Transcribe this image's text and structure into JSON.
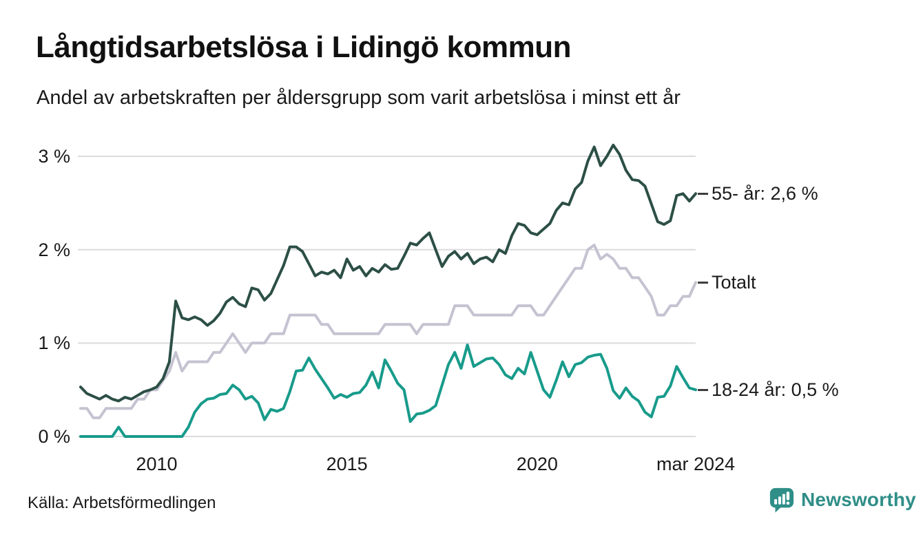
{
  "chart_data": {
    "type": "line",
    "title": "Långtidsarbetslösa i Lidingö kommun",
    "subtitle": "Andel av arbetskraften per åldersgrupp som varit arbetslösa i minst ett år",
    "source": "Källa: Arbetsförmedlingen",
    "x_unit": "year (monthly data, jan 2008 – mar 2024)",
    "xlim": [
      2008,
      2024.1667
    ],
    "ylim": [
      0,
      3.2
    ],
    "grid": "horizontal",
    "legend_position": "end-of-line labels on right",
    "xticks": [
      {
        "label": "2010",
        "year": 2010
      },
      {
        "label": "2015",
        "year": 2015
      },
      {
        "label": "2020",
        "year": 2020
      },
      {
        "label": "mar 2024",
        "year": 2024.1667
      }
    ],
    "yticks": [
      {
        "label": "0 %",
        "value": 0
      },
      {
        "label": "1 %",
        "value": 1
      },
      {
        "label": "2 %",
        "value": 2
      },
      {
        "label": "3 %",
        "value": 3
      }
    ],
    "series": [
      {
        "name": "Totalt",
        "end_label": "Totalt",
        "end_value": 1.65,
        "color": "#c5c3d1",
        "values": [
          0.3,
          0.3,
          0.2,
          0.2,
          0.3,
          0.3,
          0.3,
          0.3,
          0.3,
          0.4,
          0.4,
          0.5,
          0.5,
          0.6,
          0.7,
          0.9,
          0.7,
          0.8,
          0.8,
          0.8,
          0.8,
          0.9,
          0.9,
          1.0,
          1.1,
          1.0,
          0.9,
          1.0,
          1.0,
          1.0,
          1.1,
          1.1,
          1.1,
          1.3,
          1.3,
          1.3,
          1.3,
          1.3,
          1.2,
          1.2,
          1.1,
          1.1,
          1.1,
          1.1,
          1.1,
          1.1,
          1.1,
          1.1,
          1.2,
          1.2,
          1.2,
          1.2,
          1.2,
          1.1,
          1.2,
          1.2,
          1.2,
          1.2,
          1.2,
          1.4,
          1.4,
          1.4,
          1.3,
          1.3,
          1.3,
          1.3,
          1.3,
          1.3,
          1.3,
          1.4,
          1.4,
          1.4,
          1.3,
          1.3,
          1.4,
          1.5,
          1.6,
          1.7,
          1.8,
          1.8,
          2.0,
          2.05,
          1.9,
          1.95,
          1.9,
          1.8,
          1.8,
          1.7,
          1.7,
          1.6,
          1.5,
          1.3,
          1.3,
          1.4,
          1.4,
          1.5,
          1.5,
          1.65
        ]
      },
      {
        "name": "55- år",
        "end_label": "55- år: 2,6 %",
        "end_value": 2.6,
        "color": "#2c4f46",
        "values": [
          0.53,
          0.46,
          0.43,
          0.4,
          0.44,
          0.4,
          0.38,
          0.42,
          0.4,
          0.44,
          0.48,
          0.5,
          0.53,
          0.62,
          0.8,
          1.45,
          1.27,
          1.25,
          1.28,
          1.25,
          1.19,
          1.24,
          1.32,
          1.44,
          1.49,
          1.42,
          1.39,
          1.59,
          1.57,
          1.46,
          1.53,
          1.68,
          1.83,
          2.03,
          2.03,
          1.98,
          1.85,
          1.72,
          1.76,
          1.74,
          1.78,
          1.7,
          1.9,
          1.78,
          1.82,
          1.72,
          1.8,
          1.76,
          1.84,
          1.79,
          1.8,
          1.93,
          2.07,
          2.05,
          2.12,
          2.18,
          2.0,
          1.82,
          1.93,
          1.98,
          1.9,
          1.96,
          1.85,
          1.9,
          1.92,
          1.87,
          2.0,
          1.96,
          2.15,
          2.28,
          2.26,
          2.18,
          2.16,
          2.22,
          2.28,
          2.42,
          2.5,
          2.48,
          2.65,
          2.72,
          2.95,
          3.1,
          2.9,
          3.0,
          3.12,
          3.02,
          2.85,
          2.75,
          2.74,
          2.68,
          2.49,
          2.3,
          2.27,
          2.31,
          2.58,
          2.6,
          2.52,
          2.6
        ]
      },
      {
        "name": "18-24 år",
        "end_label": "18-24 år: 0,5 %",
        "end_value": 0.5,
        "color": "#189b8b",
        "values": [
          0,
          0,
          0,
          0,
          0,
          0,
          0.1,
          0,
          0,
          0,
          0,
          0,
          0,
          0,
          0,
          0,
          0,
          0.1,
          0.26,
          0.35,
          0.4,
          0.41,
          0.45,
          0.46,
          0.55,
          0.5,
          0.4,
          0.43,
          0.36,
          0.18,
          0.29,
          0.27,
          0.3,
          0.48,
          0.7,
          0.71,
          0.84,
          0.72,
          0.62,
          0.52,
          0.41,
          0.45,
          0.42,
          0.46,
          0.47,
          0.55,
          0.69,
          0.52,
          0.82,
          0.7,
          0.57,
          0.5,
          0.16,
          0.24,
          0.25,
          0.28,
          0.33,
          0.55,
          0.77,
          0.9,
          0.73,
          0.98,
          0.75,
          0.79,
          0.83,
          0.84,
          0.77,
          0.66,
          0.62,
          0.73,
          0.67,
          0.9,
          0.7,
          0.5,
          0.42,
          0.6,
          0.8,
          0.64,
          0.77,
          0.79,
          0.85,
          0.87,
          0.88,
          0.73,
          0.49,
          0.41,
          0.52,
          0.43,
          0.38,
          0.26,
          0.21,
          0.42,
          0.43,
          0.54,
          0.75,
          0.63,
          0.52,
          0.5
        ]
      }
    ],
    "line_width": 4,
    "grid_color": "#dbdbde"
  },
  "footer": {
    "brand": "Newsworthy"
  },
  "colors": {
    "brand_teal": "#2f8e88",
    "text": "#1a1a1a"
  }
}
